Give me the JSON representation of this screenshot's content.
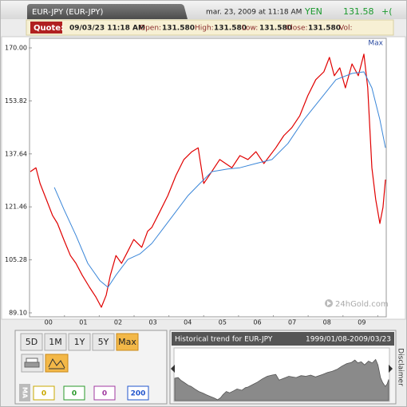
{
  "header": {
    "title": "EUR-JPY (EUR-JPY)",
    "timestamp": "mar. 23, 2009 at 11:18 AM",
    "currency": "YEN",
    "price": "131.58",
    "change": "+("
  },
  "quote": {
    "label": "Quote:",
    "time": "09/03/23 11:18 AM",
    "fields": [
      {
        "label": "Open:",
        "value": "131.580"
      },
      {
        "label": "High:",
        "value": "131.580"
      },
      {
        "label": "Low:",
        "value": "131.580"
      },
      {
        "label": "Close:",
        "value": "131.580"
      },
      {
        "label": "Vol:"
      }
    ]
  },
  "chart_data": {
    "type": "line",
    "range_label": "Max",
    "watermark": "24hGold.com",
    "grid": false,
    "xlim": [
      1999.02,
      2009.22
    ],
    "ylim": [
      89.1,
      170
    ],
    "xticks": [
      {
        "value": 2000,
        "label": "00"
      },
      {
        "value": 2001,
        "label": "01"
      },
      {
        "value": 2002,
        "label": "02"
      },
      {
        "value": 2003,
        "label": "03"
      },
      {
        "value": 2004,
        "label": "04"
      },
      {
        "value": 2005,
        "label": "05"
      },
      {
        "value": 2006,
        "label": "06"
      },
      {
        "value": 2007,
        "label": "07"
      },
      {
        "value": 2008,
        "label": "08"
      },
      {
        "value": 2009,
        "label": "09"
      }
    ],
    "yticks": [
      {
        "value": 170,
        "label": "170.00"
      },
      153.82,
      137.64,
      121.46,
      105.28,
      {
        "value": 89.1,
        "label": "89.10"
      }
    ],
    "series": [
      {
        "color": "#e00000",
        "x": [
          1999.02,
          1999.18,
          1999.3,
          1999.48,
          1999.66,
          1999.8,
          1999.98,
          2000.17,
          2000.33,
          2000.51,
          2000.72,
          2000.9,
          2001.06,
          2001.2,
          2001.32,
          2001.48,
          2001.64,
          2001.82,
          2001.99,
          2002.22,
          2002.39,
          2002.51,
          2002.74,
          2002.97,
          2003.2,
          2003.43,
          2003.66,
          2003.84,
          2004.0,
          2004.23,
          2004.46,
          2004.81,
          2005.04,
          2005.27,
          2005.5,
          2005.73,
          2006.07,
          2006.3,
          2006.53,
          2006.76,
          2006.99,
          2007.22,
          2007.45,
          2007.61,
          2007.75,
          2007.91,
          2008.07,
          2008.26,
          2008.44,
          2008.6,
          2008.71,
          2008.83,
          2008.94,
          2009.06,
          2009.15,
          2009.22
        ],
        "values": [
          132.2,
          133.4,
          128.6,
          123.7,
          118.8,
          116.4,
          111.5,
          106.6,
          104.2,
          100.6,
          96.9,
          94.0,
          90.8,
          94.5,
          100.6,
          106.6,
          104.2,
          107.9,
          111.5,
          109.1,
          114.0,
          115.2,
          120.0,
          124.9,
          131.0,
          135.9,
          138.3,
          139.5,
          128.6,
          132.2,
          135.9,
          133.4,
          137.1,
          135.9,
          138.3,
          134.7,
          139.5,
          143.2,
          145.6,
          149.3,
          155.4,
          160.3,
          162.7,
          167.1,
          161.5,
          163.9,
          157.8,
          165.1,
          161.5,
          168.1,
          157.8,
          133.4,
          123.7,
          116.4,
          121.3,
          129.8
        ]
      },
      {
        "color": "#3a86d8",
        "x": [
          1999.71,
          1999.98,
          2000.33,
          2000.67,
          2001.02,
          2001.25,
          2001.48,
          2001.82,
          2002.17,
          2002.51,
          2002.86,
          2003.2,
          2003.55,
          2003.89,
          2004.23,
          2004.69,
          2005.04,
          2005.5,
          2005.96,
          2006.42,
          2006.88,
          2007.34,
          2007.8,
          2008.26,
          2008.6,
          2008.83,
          2009.06,
          2009.22
        ],
        "values": [
          127.4,
          120.8,
          112.7,
          104.2,
          98.9,
          96.9,
          100.6,
          105.4,
          107.1,
          110.3,
          115.2,
          120.0,
          124.9,
          128.6,
          132.2,
          133.0,
          133.4,
          134.7,
          135.9,
          140.8,
          148.1,
          154.2,
          160.3,
          162.2,
          162.7,
          157.8,
          148.1,
          139.5
        ]
      }
    ]
  },
  "controls": {
    "periods": [
      "5D",
      "1M",
      "1Y",
      "5Y",
      "Max"
    ],
    "selected_period": 4,
    "ma_label": "MA",
    "ma_inputs": [
      {
        "value": "0",
        "color": "#c9a800"
      },
      {
        "value": "0",
        "color": "#2a9a2a"
      },
      {
        "value": "0",
        "color": "#a03aa0"
      },
      {
        "value": "200",
        "color": "#2255cc"
      }
    ]
  },
  "trend": {
    "title": "Historical trend for EUR-JPY",
    "range": "1999/01/08-2009/03/23"
  },
  "disclaimer": "Disclaimer"
}
